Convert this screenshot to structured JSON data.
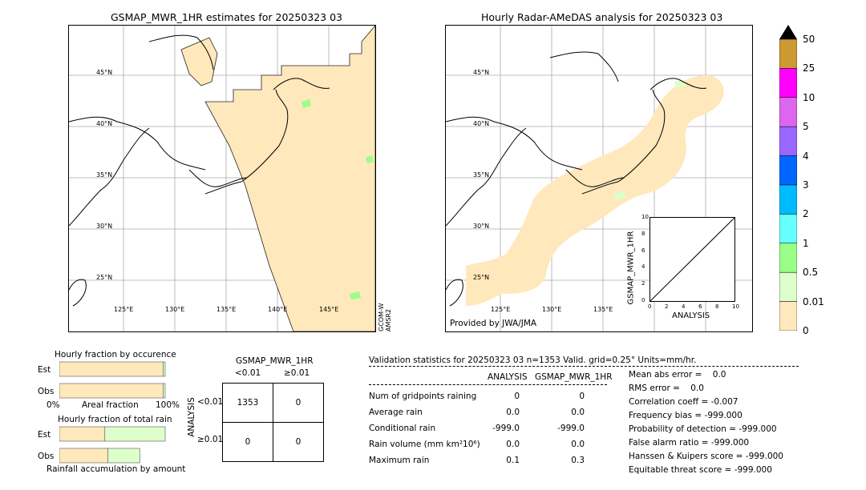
{
  "panels": {
    "left_title": "GSMAP_MWR_1HR estimates for 20250323 03",
    "right_title": "Hourly Radar-AMeDAS analysis for 20250323 03",
    "satellite_label_1": "GCOM-W",
    "satellite_label_2": "AMSR2",
    "provided_by": "Provided by JWA/JMA",
    "lat_labels": [
      "45°N",
      "40°N",
      "35°N",
      "30°N",
      "25°N"
    ],
    "lon_labels": [
      "125°E",
      "130°E",
      "135°E",
      "140°E",
      "145°E"
    ]
  },
  "colorbar": {
    "labels": [
      "50",
      "25",
      "10",
      "5",
      "4",
      "3",
      "2",
      "1",
      "0.5",
      "0.01",
      "0"
    ],
    "colors": [
      "#cc9933",
      "#ff00ff",
      "#dd66ee",
      "#9966ff",
      "#0066ff",
      "#00bbff",
      "#66ffff",
      "#99ff88",
      "#ddffcc",
      "#ffe8bb"
    ]
  },
  "scatter_inset": {
    "ylabel": "GSMAP_MWR_1HR",
    "xlabel": "ANALYSIS",
    "ticks": [
      "0",
      "2",
      "4",
      "6",
      "8",
      "10"
    ]
  },
  "fraction_charts": {
    "occurrence_title": "Hourly fraction by occurence",
    "total_title": "Hourly fraction of total rain",
    "est_label": "Est",
    "obs_label": "Obs",
    "axis_left": "0%",
    "axis_mid": "Areal fraction",
    "axis_right": "100%",
    "footer": "Rainfall accumulation by amount"
  },
  "contingency": {
    "title": "GSMAP_MWR_1HR",
    "col1": "<0.01",
    "col2": "≥0.01",
    "row1": "<0.01",
    "row2": "≥0.01",
    "side_label": "ANALYSIS",
    "cells": [
      "1353",
      "0",
      "0",
      "0"
    ]
  },
  "validation": {
    "header": "Validation statistics for 20250323 03  n=1353 Valid. grid=0.25° Units=mm/hr.",
    "col_analysis": "ANALYSIS",
    "col_gsmap": "GSMAP_MWR_1HR",
    "rows": [
      {
        "label": "Num of gridpoints raining",
        "a": "0",
        "g": "0"
      },
      {
        "label": "Average rain",
        "a": "0.0",
        "g": "0.0"
      },
      {
        "label": "Conditional rain",
        "a": "-999.0",
        "g": "-999.0"
      },
      {
        "label": "Rain volume (mm km²10⁶)",
        "a": "0.0",
        "g": "0.0"
      },
      {
        "label": "Maximum rain",
        "a": "0.1",
        "g": "0.3"
      }
    ],
    "scores": [
      "Mean abs error =    0.0",
      "RMS error =    0.0",
      "Correlation coeff = -0.007",
      "Frequency bias = -999.000",
      "Probability of detection = -999.000",
      "False alarm ratio = -999.000",
      "Hanssen & Kuipers score = -999.000",
      "Equitable threat score = -999.000"
    ]
  },
  "chart_data": [
    {
      "type": "table",
      "title": "GSMAP_MWR_1HR",
      "columns": [
        "<0.01",
        "≥0.01"
      ],
      "rows": [
        "<0.01",
        "≥0.01"
      ],
      "values": [
        [
          1353,
          0
        ],
        [
          0,
          0
        ]
      ]
    },
    {
      "type": "bar",
      "title": "Hourly fraction by occurence",
      "categories": [
        "Est",
        "Obs"
      ],
      "series": [
        {
          "values": [
            0.98,
            0.98
          ]
        },
        {
          "values": [
            0.02,
            0.02
          ]
        }
      ],
      "xlim": [
        0,
        1
      ]
    },
    {
      "type": "bar",
      "title": "Hourly fraction of total rain",
      "categories": [
        "Est",
        "Obs"
      ],
      "series": [
        {
          "values": [
            0.43,
            0.46
          ]
        },
        {
          "values": [
            0.57,
            0.3
          ]
        }
      ],
      "xlim": [
        0,
        1
      ]
    }
  ]
}
